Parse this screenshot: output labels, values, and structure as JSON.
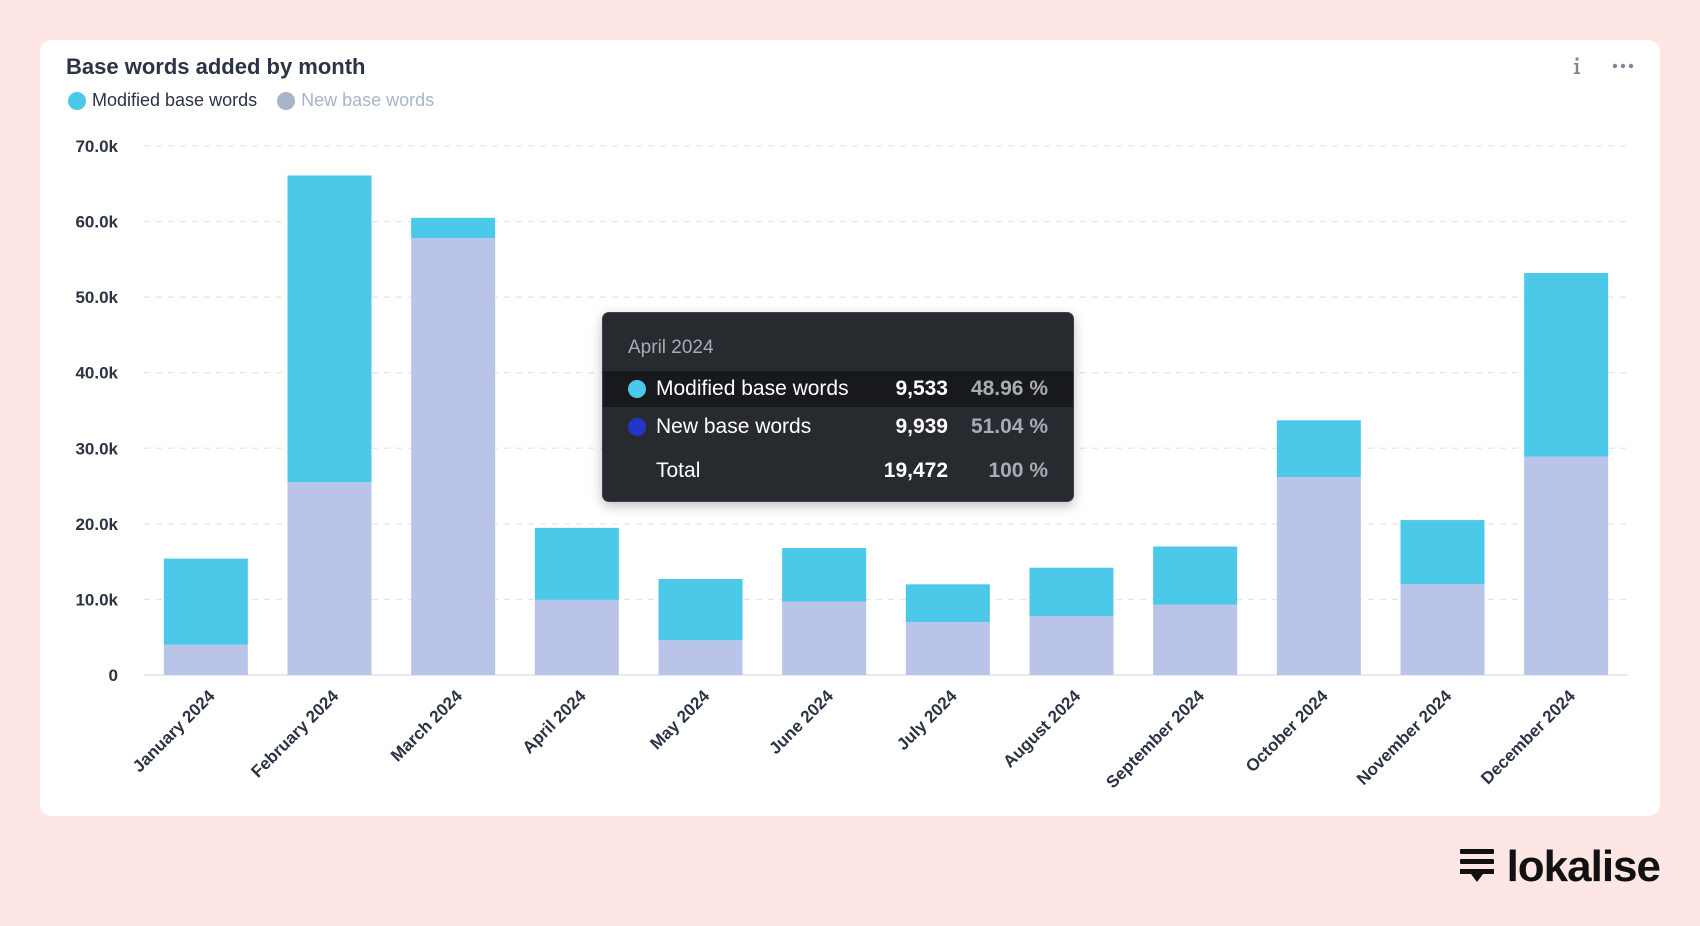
{
  "card": {
    "title": "Base words added by month",
    "legend": [
      {
        "label": "Modified base words",
        "color": "#4cc8e9",
        "active": true
      },
      {
        "label": "New base words",
        "color": "#a9b4c6",
        "active": false
      }
    ],
    "actions": {
      "info_icon": "info-icon",
      "more_icon": "more-horizontal-icon"
    }
  },
  "chart_data": {
    "type": "bar",
    "stacked": true,
    "categories": [
      "January 2024",
      "February 2024",
      "March 2024",
      "April 2024",
      "May 2024",
      "June 2024",
      "July 2024",
      "August 2024",
      "September 2024",
      "October 2024",
      "November 2024",
      "December 2024"
    ],
    "series": [
      {
        "name": "New base words",
        "color": "#bac4e9",
        "values": [
          4000,
          25500,
          57800,
          9939,
          4600,
          9700,
          7000,
          7800,
          9300,
          26200,
          12000,
          28900
        ]
      },
      {
        "name": "Modified base words",
        "color": "#4cc8e9",
        "values": [
          11400,
          40600,
          2700,
          9533,
          8100,
          7100,
          5000,
          6400,
          7700,
          7500,
          8500,
          24300
        ]
      }
    ],
    "y_ticks": [
      "0",
      "10.0k",
      "20.0k",
      "30.0k",
      "40.0k",
      "50.0k",
      "60.0k",
      "70.0k"
    ],
    "ylim": [
      0,
      70000
    ],
    "grid": true
  },
  "tooltip": {
    "header": "April 2024",
    "rows": [
      {
        "label": "Modified base words",
        "value": "9,533",
        "pct": "48.96 %",
        "color": "#4cc8e9"
      },
      {
        "label": "New base words",
        "value": "9,939",
        "pct": "51.04 %",
        "color": "#2336c8"
      },
      {
        "label": "Total",
        "value": "19,472",
        "pct": "100 %"
      }
    ]
  },
  "brand": {
    "name": "lokalise",
    "icon": "lokalise-logo-icon"
  }
}
